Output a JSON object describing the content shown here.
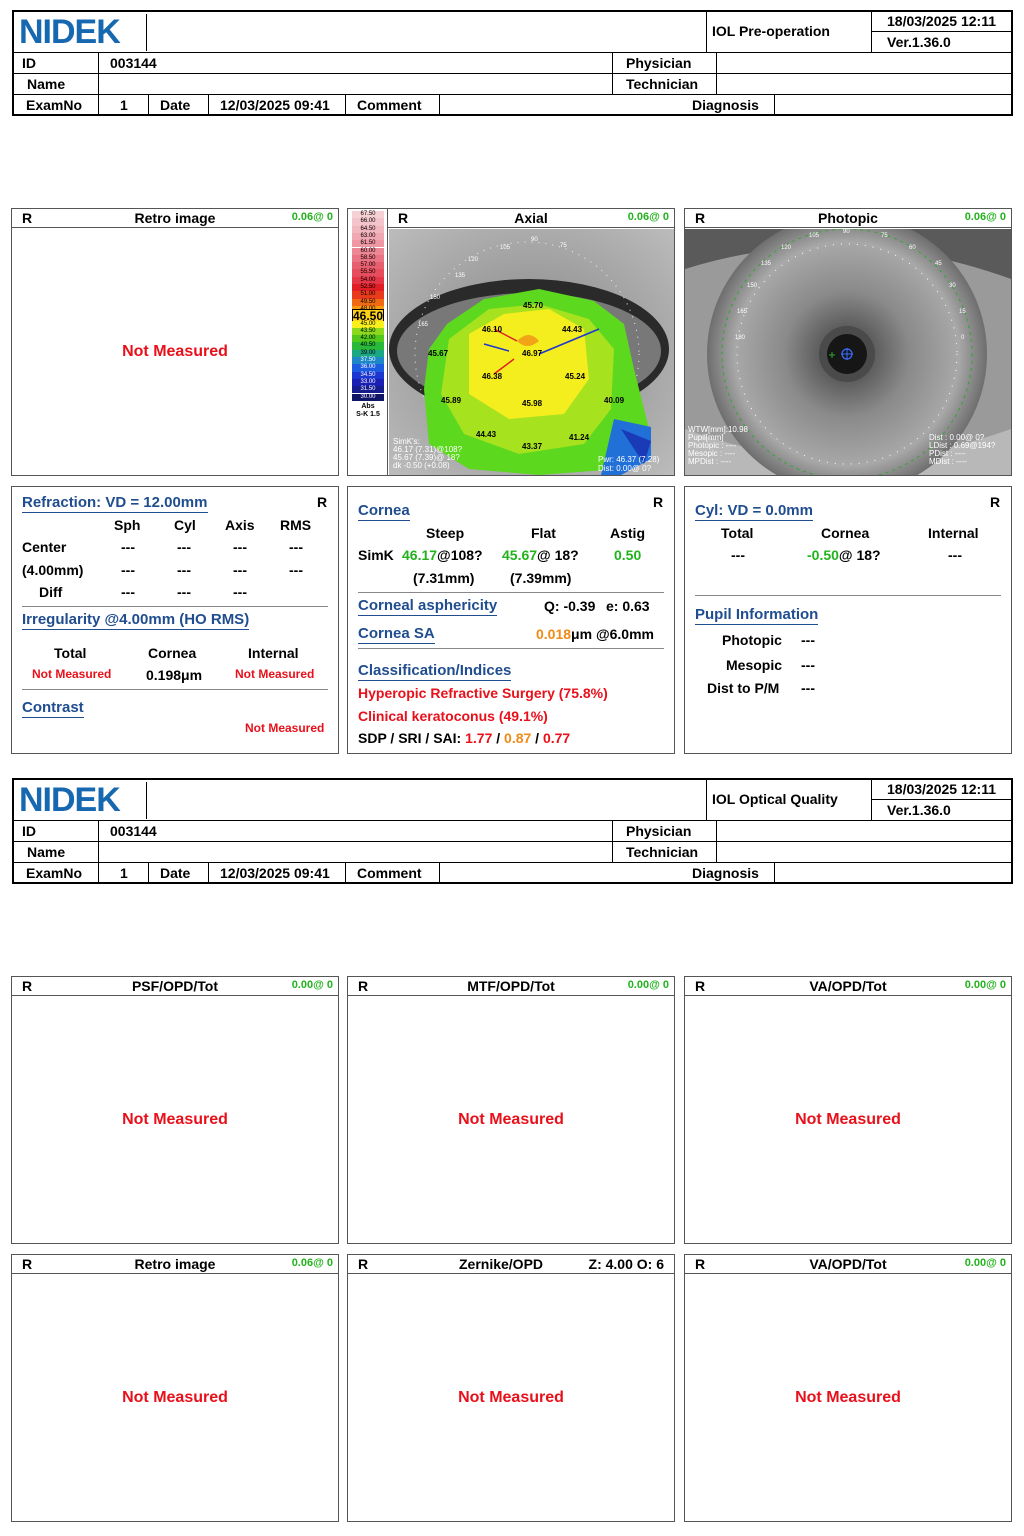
{
  "colors": {
    "brand": "#1668b0",
    "not_measured": "#e8101a",
    "value_green": "#22b21c",
    "value_orange": "#f08a16",
    "section_blue": "#1f4d8f"
  },
  "header1": {
    "logo": "NIDEK",
    "title": "IOL Pre-operation",
    "datetime": "18/03/2025 12:11",
    "version": "Ver.1.36.0",
    "id_label": "ID",
    "id_value": "003144",
    "physician_label": "Physician",
    "name_label": "Name",
    "technician_label": "Technician",
    "examno_label": "ExamNo",
    "examno_value": "1",
    "date_label": "Date",
    "date_value": "12/03/2025 09:41",
    "comment_label": "Comment",
    "diagnosis_label": "Diagnosis"
  },
  "header2": {
    "logo": "NIDEK",
    "title": "IOL Optical Quality",
    "datetime": "18/03/2025 12:11",
    "version": "Ver.1.36.0",
    "id_label": "ID",
    "id_value": "003144",
    "physician_label": "Physician",
    "name_label": "Name",
    "technician_label": "Technician",
    "examno_label": "ExamNo",
    "examno_value": "1",
    "date_label": "Date",
    "date_value": "12/03/2025 09:41",
    "comment_label": "Comment",
    "diagnosis_label": "Diagnosis"
  },
  "not_measured": "Not Measured",
  "page1": {
    "retro": {
      "eye": "R",
      "title": "Retro image",
      "scale": "0.06@  0"
    },
    "axial": {
      "eye": "R",
      "title": "Axial",
      "scale": "0.06@  0",
      "legend_values": [
        "67.50",
        "66.00",
        "64.50",
        "63.00",
        "61.50",
        "60.00",
        "58.50",
        "57.00",
        "55.50",
        "54.00",
        "52.50",
        "51.00",
        "49.50",
        "48.00",
        "46.50",
        "45.00",
        "43.50",
        "42.00",
        "40.50",
        "39.00",
        "37.50",
        "36.00",
        "34.50",
        "33.00",
        "31.50",
        "30.00"
      ],
      "legend_colors": [
        "#f6d0d4",
        "#f4c4cb",
        "#f2b6bf",
        "#f0a7b2",
        "#ee97a3",
        "#ec8693",
        "#ea7483",
        "#e86070",
        "#e64c5c",
        "#e43646",
        "#e01e24",
        "#ea3a1c",
        "#f06a14",
        "#f89a10",
        "#fcd018",
        "#f8f01c",
        "#8cd81c",
        "#52c81c",
        "#28b83a",
        "#1aa884",
        "#1c88c8",
        "#1c5ce0",
        "#1c36d0",
        "#1a20b4",
        "#141c8e",
        "#101466"
      ],
      "legend_current": "46.50",
      "legend_foot1": "Abs",
      "legend_foot2": "S-K 1.5",
      "map_values": [
        "45.70",
        "46.10",
        "44.43",
        "45.67",
        "46.97",
        "46.38",
        "45.24",
        "45.89",
        "45.98",
        "40.09",
        "44.43",
        "43.37",
        "41.24"
      ],
      "angles": [
        "90",
        "75",
        "105",
        "120",
        "135",
        "150",
        "165"
      ],
      "simk_lines": [
        "SimK's:",
        "46.17 (7.31)@108?",
        "45.67 (7.39)@ 18?",
        "dk -0.50 (+0.08)"
      ],
      "pwr_lines": [
        "Pwr: 46.37 (7.28)",
        "Dist: 0.00@ 0?"
      ]
    },
    "photopic": {
      "eye": "R",
      "title": "Photopic",
      "scale": "0.06@  0",
      "angles": [
        "90",
        "75",
        "60",
        "45",
        "30",
        "15",
        "0",
        "105",
        "120",
        "135",
        "150",
        "165",
        "180"
      ],
      "left_lines": [
        "WTW[mm]:10.98",
        "Pupil[mm]",
        "Photopic : ----",
        "Mesopic : ----",
        "MPDist : ----"
      ],
      "right_lines": [
        "Dist : 0.00@ 0?",
        "LDist : 0.69@194?",
        "PDist : ----",
        "MDist : ----"
      ]
    },
    "refraction": {
      "title": "Refraction: VD = 12.00mm",
      "eye": "R",
      "cols": [
        "Sph",
        "Cyl",
        "Axis",
        "RMS"
      ],
      "rows": [
        {
          "label": "Center",
          "v": [
            "---",
            "---",
            "---",
            "---"
          ]
        },
        {
          "label": "(4.00mm)",
          "v": [
            "---",
            "---",
            "---",
            "---"
          ]
        },
        {
          "label": "Diff",
          "v": [
            "---",
            "---",
            "---"
          ]
        }
      ],
      "irregularity_title": "Irregularity @4.00mm (HO RMS)",
      "irr_cols": [
        "Total",
        "Cornea",
        "Internal"
      ],
      "irr_total": "Not Measured",
      "irr_cornea": "0.198μm",
      "irr_internal": "Not Measured",
      "contrast_title": "Contrast",
      "contrast_value": "Not Measured"
    },
    "cornea": {
      "title": "Cornea",
      "eye": "R",
      "cols": [
        "Steep",
        "Flat",
        "Astig"
      ],
      "simk_label": "SimK",
      "steep_val": "46.17",
      "steep_axis": "@108?",
      "flat_val": "45.67",
      "flat_axis": "@ 18?",
      "astig": "0.50",
      "steep_mm": "(7.31mm)",
      "flat_mm": "(7.39mm)",
      "asph_title": "Corneal asphericity",
      "asph_q": "Q: -0.39",
      "asph_e": "e: 0.63",
      "sa_title": "Cornea SA",
      "sa_val": "0.018",
      "sa_unit": "μm @6.0mm",
      "class_title": "Classification/Indices",
      "class1": "Hyperopic Refractive Surgery (75.8%)",
      "class2": "Clinical keratoconus (49.1%)",
      "sdp_label": "SDP / SRI / SAI:",
      "sdp": "1.77",
      "sri": "0.87",
      "sai": "0.77",
      "sep": "/"
    },
    "cyl": {
      "title": "Cyl: VD = 0.0mm",
      "eye": "R",
      "cols": [
        "Total",
        "Cornea",
        "Internal"
      ],
      "total": "---",
      "cornea_val": "-0.50",
      "cornea_axis": "@ 18?",
      "internal": "---",
      "pupil_title": "Pupil Information",
      "photopic_label": "Photopic",
      "photopic_val": "---",
      "mesopic_label": "Mesopic",
      "mesopic_val": "---",
      "dist_label": "Dist to P/M",
      "dist_val": "---"
    }
  },
  "page2": {
    "panels": [
      {
        "eye": "R",
        "title": "PSF/OPD/Tot",
        "scale": "0.00@  0"
      },
      {
        "eye": "R",
        "title": "MTF/OPD/Tot",
        "scale": "0.00@  0"
      },
      {
        "eye": "R",
        "title": "VA/OPD/Tot",
        "scale": "0.00@  0"
      },
      {
        "eye": "R",
        "title": "Retro image",
        "scale": "0.06@  0"
      },
      {
        "eye": "R",
        "title": "Zernike/OPD",
        "scale": "Z: 4.00 O: 6"
      },
      {
        "eye": "R",
        "title": "VA/OPD/Tot",
        "scale": "0.00@  0"
      }
    ]
  }
}
